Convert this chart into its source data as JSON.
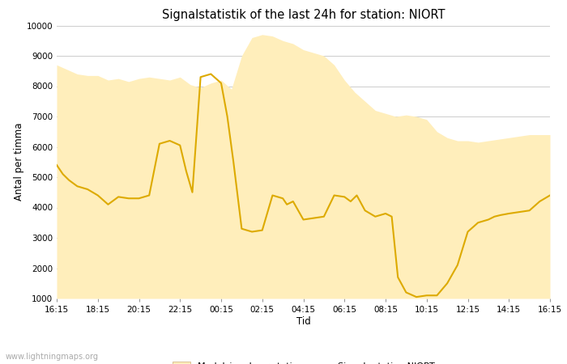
{
  "title": "Signalstatistik of the last 24h for station: NIORT",
  "xlabel": "Tid",
  "ylabel": "Antal per timma",
  "watermark": "www.lightningmaps.org",
  "x_ticks": [
    "16:15",
    "18:15",
    "20:15",
    "22:15",
    "00:15",
    "02:15",
    "04:15",
    "06:15",
    "08:15",
    "10:15",
    "12:15",
    "14:15",
    "16:15"
  ],
  "ylim": [
    1000,
    10000
  ],
  "yticks": [
    1000,
    2000,
    3000,
    4000,
    5000,
    6000,
    7000,
    8000,
    9000,
    10000
  ],
  "bg_color": "#ffffff",
  "fill_color": "#ffeebb",
  "line_color": "#ddaa00",
  "legend_fill_label": "Medelsignal per station",
  "legend_line_label": "Signals station NIORT",
  "fill_x": [
    0,
    0.5,
    1.0,
    1.5,
    2.0,
    2.5,
    3.0,
    3.5,
    4.0,
    4.5,
    5.0,
    5.5,
    6.0,
    6.5,
    7.0,
    7.5,
    8.0,
    8.5,
    9.0,
    9.5,
    10.0,
    10.5,
    11.0,
    11.5,
    12.0,
    12.5,
    13.0,
    13.5,
    14.0,
    14.5,
    15.0,
    15.5,
    16.0,
    16.5,
    17.0,
    17.5,
    18.0,
    18.5,
    19.0,
    19.5,
    20.0,
    20.5,
    21.0,
    21.5,
    22.0,
    22.5,
    23.0,
    23.5,
    24.0
  ],
  "fill_y": [
    8700,
    8550,
    8400,
    8350,
    8350,
    8200,
    8250,
    8150,
    8250,
    8300,
    8250,
    8200,
    8300,
    8050,
    7950,
    8100,
    8200,
    7900,
    9000,
    9600,
    9700,
    9650,
    9500,
    9400,
    9200,
    9100,
    9000,
    8700,
    8200,
    7800,
    7500,
    7200,
    7100,
    7000,
    7050,
    7000,
    6900,
    6500,
    6300,
    6200,
    6200,
    6150,
    6200,
    6250,
    6300,
    6350,
    6400,
    6400,
    6400
  ],
  "line_x": [
    0,
    0.3,
    0.6,
    1.0,
    1.5,
    2.0,
    2.5,
    3.0,
    3.5,
    4.0,
    4.5,
    5.0,
    5.5,
    6.0,
    6.3,
    6.6,
    7.0,
    7.5,
    8.0,
    8.3,
    8.6,
    9.0,
    9.5,
    10.0,
    10.5,
    11.0,
    11.2,
    11.5,
    12.0,
    12.5,
    13.0,
    13.5,
    14.0,
    14.3,
    14.6,
    15.0,
    15.5,
    16.0,
    16.3,
    16.6,
    17.0,
    17.5,
    18.0,
    18.5,
    19.0,
    19.5,
    20.0,
    20.5,
    21.0,
    21.3,
    21.6,
    22.0,
    22.5,
    23.0,
    23.5,
    24.0
  ],
  "line_y": [
    5400,
    5100,
    4900,
    4700,
    4600,
    4400,
    4100,
    4350,
    4300,
    4300,
    4400,
    6100,
    6200,
    6050,
    5200,
    4500,
    8300,
    8400,
    8100,
    7000,
    5500,
    3300,
    3200,
    3250,
    4400,
    4300,
    4100,
    4200,
    3600,
    3650,
    3700,
    4400,
    4350,
    4200,
    4400,
    3900,
    3700,
    3800,
    3700,
    1700,
    1200,
    1050,
    1100,
    1100,
    1500,
    2100,
    3200,
    3500,
    3600,
    3700,
    3750,
    3800,
    3850,
    3900,
    4200,
    4400
  ]
}
